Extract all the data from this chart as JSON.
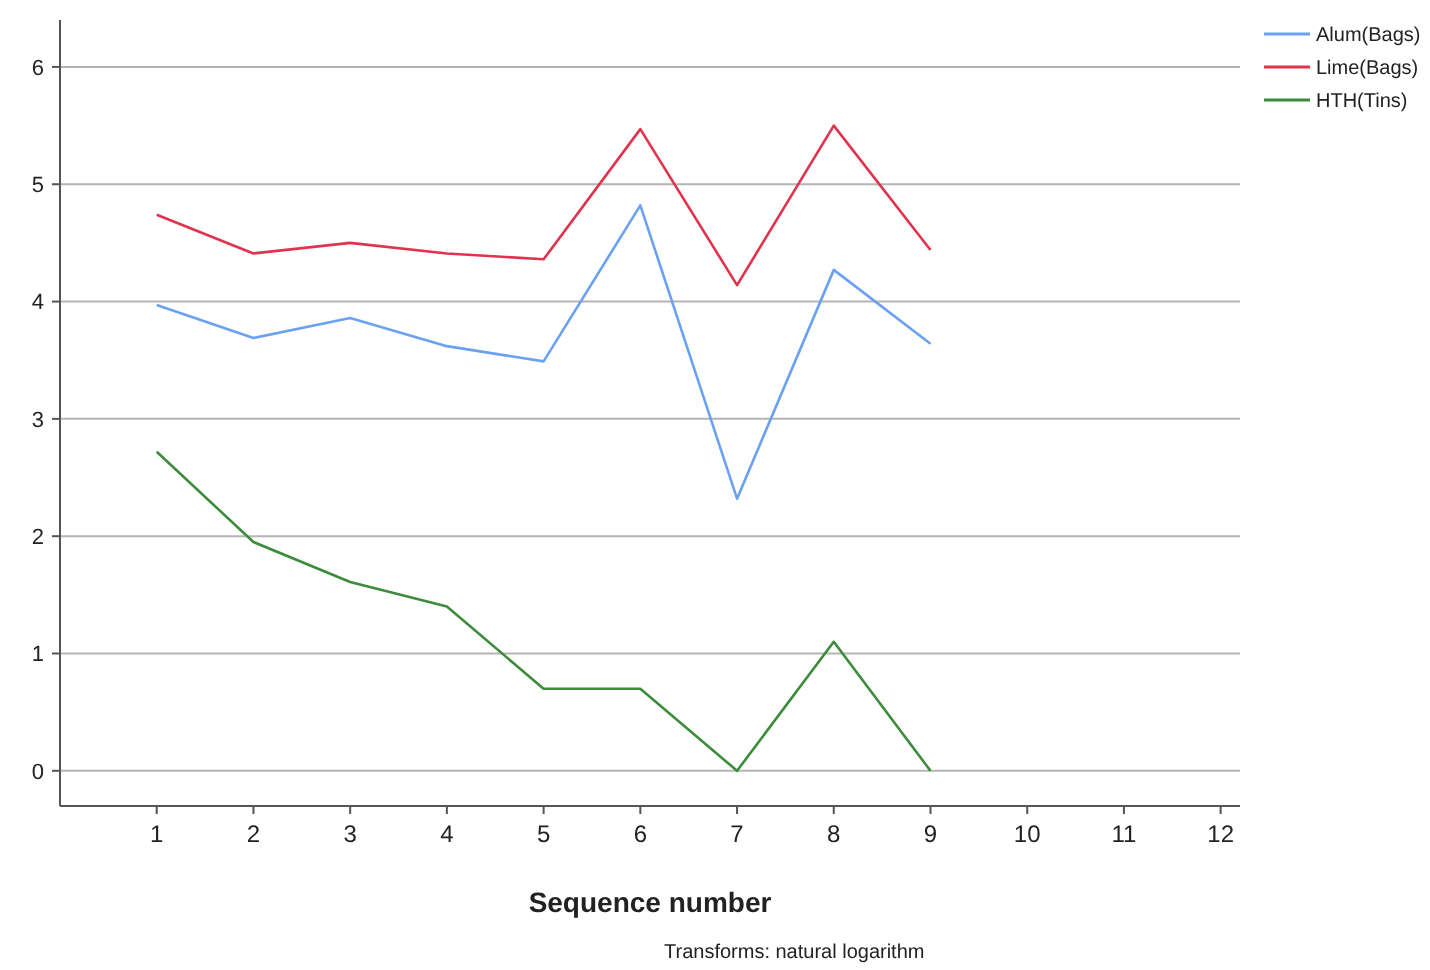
{
  "chart_data": {
    "type": "line",
    "xlabel": "Sequence number",
    "annotations": [
      "Transforms: natural logarithm"
    ],
    "x": [
      1,
      2,
      3,
      4,
      5,
      6,
      7,
      8,
      9
    ],
    "xlim": [
      0,
      12.2
    ],
    "xticks": [
      1,
      2,
      3,
      4,
      5,
      6,
      7,
      8,
      9,
      10,
      11,
      12
    ],
    "ylim": [
      -0.3,
      6.4
    ],
    "yticks": [
      0,
      1,
      2,
      3,
      4,
      5,
      6
    ],
    "grid": "y",
    "legend": "right",
    "marker": "none",
    "line_style": "solid",
    "series": [
      {
        "name": "Alum(Bags)",
        "color": "#6aa1f2",
        "values": [
          3.97,
          3.69,
          3.86,
          3.62,
          3.49,
          4.82,
          2.32,
          4.27,
          3.64
        ]
      },
      {
        "name": "Lime(Bags)",
        "color": "#e1334d",
        "values": [
          4.74,
          4.41,
          4.5,
          4.41,
          4.36,
          5.47,
          4.14,
          5.5,
          4.44
        ]
      },
      {
        "name": "HTH(Tins)",
        "color": "#3c8c3c",
        "values": [
          2.72,
          1.95,
          1.61,
          1.4,
          0.7,
          0.7,
          0,
          1.1,
          0
        ]
      }
    ]
  }
}
